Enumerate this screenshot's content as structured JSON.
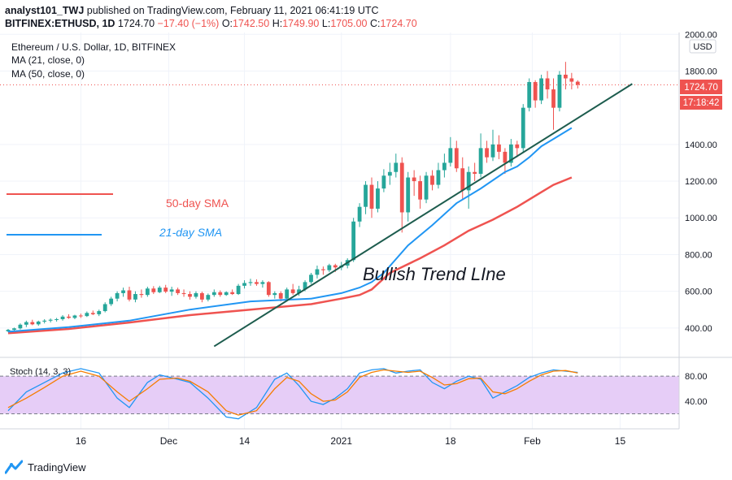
{
  "header": {
    "user": "analyst101_TWJ",
    "published": "published on TradingView.com, February 11, 2021 06:41:19 UTC",
    "symbol": "BITFINEX:ETHUSD, 1D",
    "price": "1724.70",
    "change": "−17.40 (−1%)",
    "o_label": "O:",
    "o": "1742.50",
    "h_label": "H:",
    "h": "1749.90",
    "l_label": "L:",
    "l": "1705.00",
    "c_label": "C:",
    "c": "1724.70"
  },
  "legend": {
    "title": "Ethereum / U.S. Dollar, 1D, BITFINEX",
    "ma21": "MA (21, close, 0)",
    "ma50": "MA (50, close, 0)"
  },
  "currency_badge": "USD",
  "price_label": "1724.70",
  "countdown_label": "17:18:42",
  "stoch_label": "Stoch (14, 3, 3)",
  "annotations": {
    "sma50": "50-day SMA",
    "sma21": "21-day SMA",
    "trend": "Bullish Trend LIne"
  },
  "footer": {
    "brand": "TradingView"
  },
  "colors": {
    "up": "#26a69a",
    "down": "#ef5350",
    "ma21": "#2196f3",
    "ma50": "#ef5350",
    "trendline": "#1d5c4e",
    "stoch_k": "#2196f3",
    "stoch_d": "#f57c00",
    "stoch_band": "#e6cdf7",
    "price_badge": "#ef5350"
  },
  "chart_data": {
    "type": "candlestick",
    "title": "Ethereum / U.S. Dollar, 1D, BITFINEX",
    "x_ticks": [
      "16",
      "Dec",
      "14",
      "2021",
      "18",
      "Feb",
      "15"
    ],
    "y_ticks": [
      "2000.00",
      "1800.00",
      "1400.00",
      "1200.00",
      "1000.00",
      "800.00",
      "600.00",
      "400.00"
    ],
    "ylim": [
      240,
      2010
    ],
    "candles_ohlc": [
      [
        382,
        395,
        378,
        390
      ],
      [
        390,
        402,
        385,
        398
      ],
      [
        398,
        425,
        392,
        418
      ],
      [
        418,
        440,
        405,
        432
      ],
      [
        432,
        445,
        415,
        420
      ],
      [
        420,
        440,
        412,
        435
      ],
      [
        435,
        448,
        425,
        440
      ],
      [
        440,
        452,
        430,
        445
      ],
      [
        445,
        455,
        435,
        448
      ],
      [
        448,
        470,
        440,
        462
      ],
      [
        462,
        475,
        450,
        455
      ],
      [
        455,
        472,
        448,
        468
      ],
      [
        468,
        478,
        455,
        465
      ],
      [
        465,
        490,
        460,
        482
      ],
      [
        482,
        495,
        470,
        475
      ],
      [
        475,
        500,
        465,
        492
      ],
      [
        492,
        540,
        485,
        530
      ],
      [
        530,
        570,
        520,
        560
      ],
      [
        560,
        600,
        545,
        590
      ],
      [
        590,
        620,
        570,
        605
      ],
      [
        605,
        625,
        545,
        555
      ],
      [
        555,
        600,
        540,
        585
      ],
      [
        585,
        610,
        565,
        580
      ],
      [
        580,
        625,
        570,
        615
      ],
      [
        615,
        628,
        585,
        595
      ],
      [
        595,
        630,
        590,
        620
      ],
      [
        620,
        635,
        590,
        598
      ],
      [
        598,
        625,
        575,
        610
      ],
      [
        610,
        620,
        580,
        590
      ],
      [
        590,
        610,
        570,
        585
      ],
      [
        585,
        600,
        555,
        570
      ],
      [
        570,
        600,
        560,
        590
      ],
      [
        590,
        598,
        540,
        555
      ],
      [
        555,
        588,
        545,
        580
      ],
      [
        580,
        610,
        570,
        595
      ],
      [
        595,
        605,
        570,
        580
      ],
      [
        580,
        600,
        575,
        595
      ],
      [
        595,
        610,
        580,
        585
      ],
      [
        585,
        640,
        580,
        630
      ],
      [
        630,
        660,
        615,
        645
      ],
      [
        645,
        668,
        630,
        650
      ],
      [
        650,
        665,
        630,
        640
      ],
      [
        640,
        660,
        620,
        650
      ],
      [
        650,
        655,
        570,
        580
      ],
      [
        580,
        600,
        560,
        590
      ],
      [
        590,
        600,
        545,
        560
      ],
      [
        560,
        620,
        555,
        610
      ],
      [
        610,
        640,
        580,
        590
      ],
      [
        590,
        630,
        575,
        610
      ],
      [
        610,
        660,
        600,
        650
      ],
      [
        650,
        700,
        640,
        690
      ],
      [
        690,
        740,
        670,
        720
      ],
      [
        720,
        735,
        690,
        715
      ],
      [
        715,
        750,
        705,
        742
      ],
      [
        742,
        750,
        705,
        730
      ],
      [
        730,
        760,
        715,
        740
      ],
      [
        740,
        780,
        725,
        770
      ],
      [
        770,
        1000,
        760,
        980
      ],
      [
        980,
        1080,
        950,
        1060
      ],
      [
        1060,
        1200,
        1020,
        1180
      ],
      [
        1180,
        1220,
        1000,
        1050
      ],
      [
        1050,
        1200,
        1030,
        1160
      ],
      [
        1160,
        1265,
        1140,
        1230
      ],
      [
        1230,
        1300,
        1180,
        1250
      ],
      [
        1250,
        1350,
        1220,
        1300
      ],
      [
        1300,
        1330,
        920,
        1030
      ],
      [
        1030,
        1250,
        980,
        1220
      ],
      [
        1220,
        1260,
        1120,
        1200
      ],
      [
        1200,
        1230,
        1050,
        1100
      ],
      [
        1100,
        1250,
        1080,
        1230
      ],
      [
        1230,
        1260,
        1150,
        1180
      ],
      [
        1180,
        1300,
        1160,
        1260
      ],
      [
        1260,
        1350,
        1220,
        1300
      ],
      [
        1300,
        1440,
        1280,
        1380
      ],
      [
        1380,
        1420,
        1250,
        1270
      ],
      [
        1270,
        1330,
        1100,
        1150
      ],
      [
        1150,
        1280,
        1050,
        1250
      ],
      [
        1250,
        1300,
        1200,
        1240
      ],
      [
        1240,
        1460,
        1220,
        1380
      ],
      [
        1380,
        1420,
        1300,
        1330
      ],
      [
        1330,
        1480,
        1310,
        1400
      ],
      [
        1400,
        1450,
        1320,
        1360
      ],
      [
        1360,
        1380,
        1240,
        1300
      ],
      [
        1300,
        1430,
        1280,
        1400
      ],
      [
        1400,
        1420,
        1330,
        1380
      ],
      [
        1380,
        1620,
        1360,
        1600
      ],
      [
        1600,
        1760,
        1580,
        1740
      ],
      [
        1740,
        1750,
        1600,
        1640
      ],
      [
        1640,
        1780,
        1620,
        1760
      ],
      [
        1760,
        1800,
        1650,
        1700
      ],
      [
        1700,
        1760,
        1480,
        1600
      ],
      [
        1600,
        1800,
        1580,
        1780
      ],
      [
        1780,
        1850,
        1700,
        1760
      ],
      [
        1760,
        1790,
        1700,
        1742
      ],
      [
        1742,
        1749.9,
        1705,
        1724.7
      ]
    ],
    "sma21": [
      [
        0,
        380
      ],
      [
        10,
        405
      ],
      [
        20,
        440
      ],
      [
        30,
        500
      ],
      [
        40,
        545
      ],
      [
        50,
        560
      ],
      [
        55,
        590
      ],
      [
        58,
        620
      ],
      [
        60,
        650
      ],
      [
        62,
        700
      ],
      [
        66,
        850
      ],
      [
        70,
        960
      ],
      [
        74,
        1080
      ],
      [
        78,
        1160
      ],
      [
        82,
        1250
      ],
      [
        84,
        1280
      ],
      [
        86,
        1330
      ],
      [
        88,
        1390
      ],
      [
        90,
        1430
      ],
      [
        93,
        1490
      ]
    ],
    "sma50": [
      [
        0,
        372
      ],
      [
        10,
        395
      ],
      [
        20,
        430
      ],
      [
        30,
        470
      ],
      [
        40,
        500
      ],
      [
        50,
        530
      ],
      [
        55,
        560
      ],
      [
        58,
        580
      ],
      [
        60,
        610
      ],
      [
        63,
        700
      ],
      [
        68,
        780
      ],
      [
        72,
        850
      ],
      [
        76,
        930
      ],
      [
        80,
        990
      ],
      [
        84,
        1060
      ],
      [
        88,
        1140
      ],
      [
        90,
        1180
      ],
      [
        93,
        1220
      ]
    ],
    "trendline": [
      [
        34,
        300
      ],
      [
        103,
        1730
      ]
    ],
    "stoch_ylim": [
      0,
      100
    ],
    "stoch_ticks": [
      "80.00",
      "40.00"
    ],
    "stoch_band": [
      20,
      80
    ],
    "stoch_k": [
      [
        0,
        25
      ],
      [
        3,
        55
      ],
      [
        6,
        70
      ],
      [
        9,
        85
      ],
      [
        12,
        92
      ],
      [
        15,
        85
      ],
      [
        18,
        45
      ],
      [
        20,
        30
      ],
      [
        23,
        70
      ],
      [
        25,
        82
      ],
      [
        28,
        75
      ],
      [
        30,
        70
      ],
      [
        33,
        45
      ],
      [
        36,
        15
      ],
      [
        38,
        12
      ],
      [
        41,
        30
      ],
      [
        44,
        75
      ],
      [
        46,
        85
      ],
      [
        48,
        65
      ],
      [
        50,
        40
      ],
      [
        52,
        35
      ],
      [
        54,
        45
      ],
      [
        56,
        60
      ],
      [
        58,
        85
      ],
      [
        60,
        90
      ],
      [
        62,
        92
      ],
      [
        64,
        85
      ],
      [
        66,
        88
      ],
      [
        68,
        90
      ],
      [
        70,
        70
      ],
      [
        72,
        60
      ],
      [
        74,
        72
      ],
      [
        76,
        80
      ],
      [
        78,
        75
      ],
      [
        80,
        45
      ],
      [
        82,
        55
      ],
      [
        84,
        65
      ],
      [
        86,
        78
      ],
      [
        88,
        85
      ],
      [
        90,
        90
      ],
      [
        92,
        88
      ],
      [
        94,
        86
      ]
    ],
    "stoch_d": [
      [
        0,
        30
      ],
      [
        3,
        45
      ],
      [
        6,
        62
      ],
      [
        9,
        80
      ],
      [
        12,
        88
      ],
      [
        15,
        80
      ],
      [
        18,
        55
      ],
      [
        20,
        40
      ],
      [
        23,
        60
      ],
      [
        25,
        75
      ],
      [
        28,
        77
      ],
      [
        30,
        72
      ],
      [
        33,
        55
      ],
      [
        36,
        25
      ],
      [
        38,
        18
      ],
      [
        41,
        25
      ],
      [
        44,
        60
      ],
      [
        46,
        78
      ],
      [
        48,
        72
      ],
      [
        50,
        52
      ],
      [
        52,
        40
      ],
      [
        54,
        42
      ],
      [
        56,
        55
      ],
      [
        58,
        78
      ],
      [
        60,
        86
      ],
      [
        62,
        90
      ],
      [
        64,
        88
      ],
      [
        66,
        86
      ],
      [
        68,
        88
      ],
      [
        70,
        78
      ],
      [
        72,
        66
      ],
      [
        74,
        68
      ],
      [
        76,
        76
      ],
      [
        78,
        77
      ],
      [
        80,
        55
      ],
      [
        82,
        52
      ],
      [
        84,
        60
      ],
      [
        86,
        72
      ],
      [
        88,
        82
      ],
      [
        90,
        88
      ],
      [
        92,
        89
      ],
      [
        94,
        85
      ]
    ]
  }
}
